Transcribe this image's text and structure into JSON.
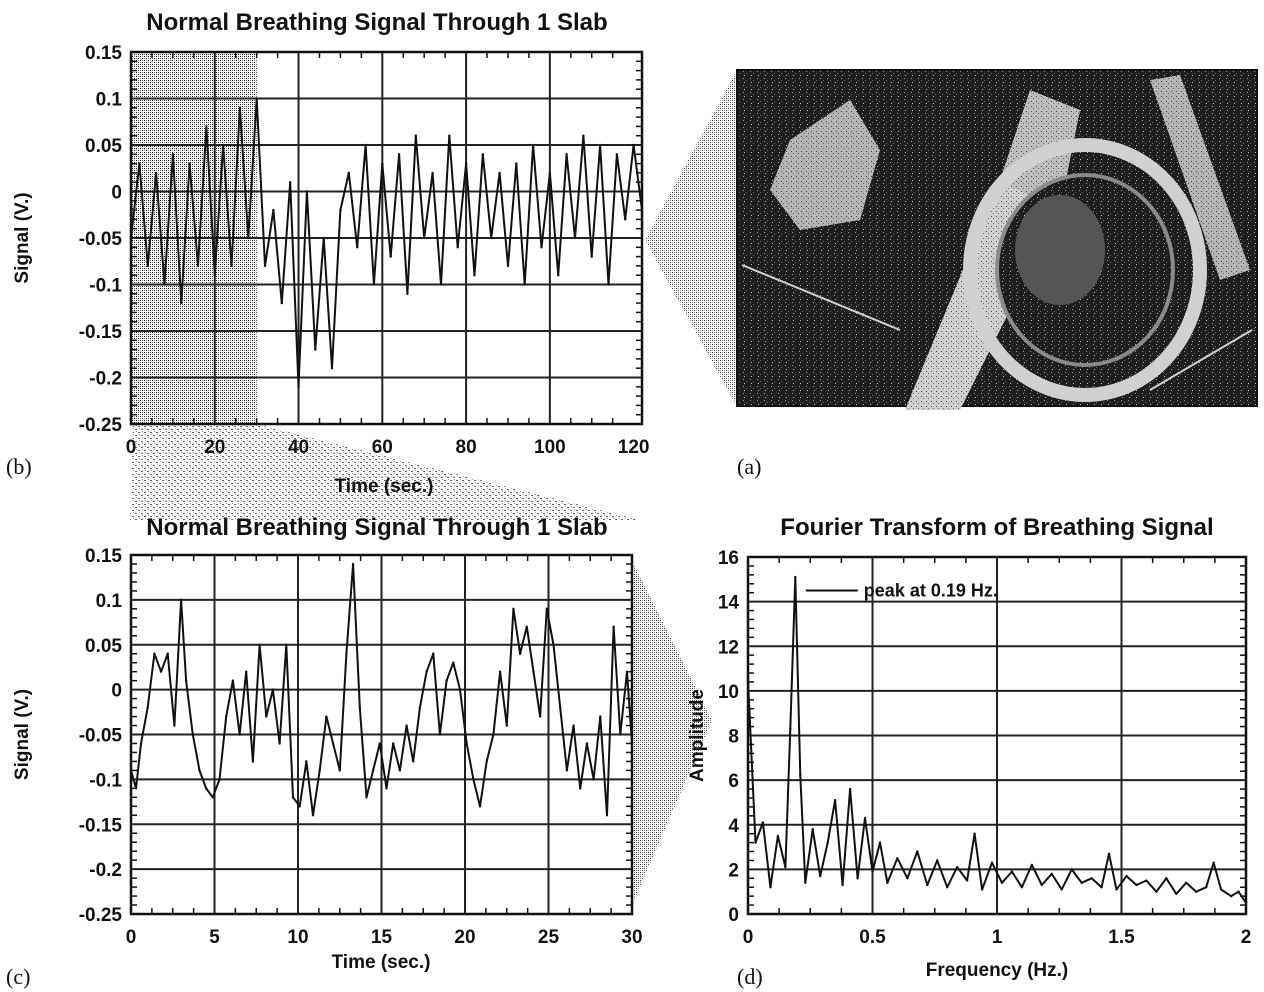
{
  "panels": {
    "b": "(b)",
    "a": "(a)",
    "c": "(c)",
    "d": "(d)"
  },
  "photo": {
    "subject": "slab-hole-photo"
  },
  "colors": {
    "line": "#111111",
    "grid": "#222222",
    "shade": "#9a9a9a",
    "photo_dark": "#1a1a1a",
    "photo_light": "#d8d8d8"
  },
  "chart_data": [
    {
      "id": "b",
      "type": "line",
      "title": "Normal Breathing Signal Through 1 Slab",
      "xlabel": "Time (sec.)",
      "ylabel": "Signal (V.)",
      "xlim": [
        0,
        122
      ],
      "ylim": [
        -0.25,
        0.15
      ],
      "xticks": [
        0,
        20,
        40,
        60,
        80,
        100,
        120
      ],
      "yticks": [
        0.15,
        0.1,
        0.05,
        0,
        -0.05,
        -0.1,
        -0.15,
        -0.2,
        -0.25
      ],
      "ytick_labels": [
        "0.15",
        "0.1",
        "0.05",
        "0",
        "-0.05",
        "-0.1",
        "-0.15",
        "-0.2",
        "-0.25"
      ],
      "xtick_labels": [
        "0",
        "20",
        "40",
        "60",
        "80",
        "100",
        "120"
      ],
      "highlight_range": [
        0,
        30
      ],
      "grid": true,
      "series": [
        {
          "x": [
            0,
            2,
            4,
            6,
            8,
            10,
            12,
            14,
            16,
            18,
            20,
            22,
            24,
            26,
            28,
            30,
            32,
            34,
            36,
            38,
            40,
            42,
            44,
            46,
            48,
            50,
            52,
            54,
            56,
            58,
            60,
            62,
            64,
            66,
            68,
            70,
            72,
            74,
            76,
            78,
            80,
            82,
            84,
            86,
            88,
            90,
            92,
            94,
            96,
            98,
            100,
            102,
            104,
            106,
            108,
            110,
            112,
            114,
            116,
            118,
            120,
            122
          ],
          "values": [
            -0.05,
            0.03,
            -0.08,
            0.02,
            -0.1,
            0.04,
            -0.12,
            0.03,
            -0.08,
            0.07,
            -0.09,
            0.05,
            -0.08,
            0.09,
            -0.05,
            0.1,
            -0.08,
            -0.02,
            -0.12,
            0.01,
            -0.21,
            0.0,
            -0.17,
            -0.05,
            -0.19,
            -0.02,
            0.02,
            -0.06,
            0.05,
            -0.1,
            0.03,
            -0.07,
            0.04,
            -0.11,
            0.06,
            -0.05,
            0.02,
            -0.1,
            0.06,
            -0.06,
            0.03,
            -0.09,
            0.04,
            -0.05,
            0.02,
            -0.08,
            0.03,
            -0.1,
            0.05,
            -0.06,
            0.02,
            -0.09,
            0.04,
            -0.05,
            0.06,
            -0.07,
            0.05,
            -0.1,
            0.04,
            -0.03,
            0.05,
            -0.02
          ]
        }
      ]
    },
    {
      "id": "c",
      "type": "line",
      "title": "Normal Breathing Signal Through 1 Slab",
      "xlabel": "Time (sec.)",
      "ylabel": "Signal (V.)",
      "xlim": [
        0,
        30
      ],
      "ylim": [
        -0.25,
        0.15
      ],
      "xticks": [
        0,
        5,
        10,
        15,
        20,
        25,
        30
      ],
      "yticks": [
        0.15,
        0.1,
        0.05,
        0,
        -0.05,
        -0.1,
        -0.15,
        -0.2,
        -0.25
      ],
      "ytick_labels": [
        "0.15",
        "0.1",
        "0.05",
        "0",
        "-0.05",
        "-0.1",
        "-0.15",
        "-0.2",
        "-0.25"
      ],
      "xtick_labels": [
        "0",
        "5",
        "10",
        "15",
        "20",
        "25",
        "30"
      ],
      "grid": true,
      "series": [
        {
          "x": [
            0,
            0.3,
            0.6,
            1.0,
            1.4,
            1.8,
            2.2,
            2.6,
            3.0,
            3.3,
            3.7,
            4.1,
            4.5,
            4.9,
            5.3,
            5.7,
            6.1,
            6.5,
            6.9,
            7.3,
            7.7,
            8.1,
            8.5,
            8.9,
            9.3,
            9.7,
            10.1,
            10.5,
            10.9,
            11.3,
            11.7,
            12.1,
            12.5,
            12.9,
            13.3,
            13.7,
            14.1,
            14.5,
            14.9,
            15.3,
            15.7,
            16.1,
            16.5,
            16.9,
            17.3,
            17.7,
            18.1,
            18.5,
            18.9,
            19.3,
            19.7,
            20.1,
            20.5,
            20.9,
            21.3,
            21.7,
            22.1,
            22.5,
            22.9,
            23.3,
            23.7,
            24.1,
            24.5,
            24.9,
            25.3,
            25.7,
            26.1,
            26.5,
            26.9,
            27.3,
            27.7,
            28.1,
            28.5,
            28.9,
            29.3,
            29.7,
            30
          ],
          "values": [
            -0.09,
            -0.11,
            -0.06,
            -0.02,
            0.04,
            0.02,
            0.04,
            -0.04,
            0.1,
            0.01,
            -0.05,
            -0.09,
            -0.11,
            -0.12,
            -0.1,
            -0.03,
            0.01,
            -0.05,
            0.02,
            -0.08,
            0.05,
            -0.03,
            0.0,
            -0.06,
            0.05,
            -0.12,
            -0.13,
            -0.08,
            -0.14,
            -0.09,
            -0.03,
            -0.06,
            -0.09,
            0.04,
            0.14,
            -0.02,
            -0.12,
            -0.09,
            -0.06,
            -0.11,
            -0.06,
            -0.09,
            -0.04,
            -0.08,
            -0.02,
            0.02,
            0.04,
            -0.05,
            0.01,
            0.03,
            0.0,
            -0.06,
            -0.1,
            -0.13,
            -0.08,
            -0.05,
            0.02,
            -0.04,
            0.09,
            0.04,
            0.07,
            0.02,
            -0.03,
            0.09,
            0.05,
            -0.02,
            -0.09,
            -0.04,
            -0.11,
            -0.06,
            -0.1,
            -0.03,
            -0.14,
            0.07,
            -0.05,
            0.02,
            -0.06
          ]
        }
      ]
    },
    {
      "id": "d",
      "type": "line",
      "title": "Fourier Transform of Breathing Signal",
      "xlabel": "Frequency (Hz.)",
      "ylabel": "Amplitude",
      "xlim": [
        0,
        2
      ],
      "ylim": [
        0,
        16
      ],
      "xticks": [
        0,
        0.5,
        1,
        1.5,
        2
      ],
      "yticks": [
        0,
        2,
        4,
        6,
        8,
        10,
        12,
        14,
        16
      ],
      "xtick_labels": [
        "0",
        "0.5",
        "1",
        "1.5",
        "2"
      ],
      "ytick_labels": [
        "0",
        "2",
        "4",
        "6",
        "8",
        "10",
        "12",
        "14",
        "16"
      ],
      "grid": true,
      "annotation": "peak at 0.19 Hz.",
      "series": [
        {
          "x": [
            0.0,
            0.03,
            0.06,
            0.09,
            0.12,
            0.15,
            0.17,
            0.19,
            0.21,
            0.23,
            0.26,
            0.29,
            0.32,
            0.35,
            0.38,
            0.41,
            0.44,
            0.47,
            0.5,
            0.53,
            0.56,
            0.6,
            0.64,
            0.68,
            0.72,
            0.76,
            0.8,
            0.84,
            0.88,
            0.91,
            0.94,
            0.98,
            1.02,
            1.06,
            1.1,
            1.14,
            1.18,
            1.22,
            1.26,
            1.3,
            1.34,
            1.38,
            1.42,
            1.45,
            1.48,
            1.52,
            1.56,
            1.6,
            1.64,
            1.68,
            1.72,
            1.76,
            1.8,
            1.84,
            1.87,
            1.9,
            1.94,
            1.97,
            2.0
          ],
          "values": [
            10.5,
            3.2,
            4.1,
            1.2,
            3.5,
            2.1,
            8.3,
            15.1,
            6.2,
            1.4,
            3.8,
            1.7,
            3.2,
            5.1,
            1.3,
            5.6,
            1.6,
            4.3,
            1.9,
            3.2,
            1.4,
            2.5,
            1.6,
            2.8,
            1.3,
            2.4,
            1.2,
            2.1,
            1.5,
            3.6,
            1.1,
            2.3,
            1.4,
            1.9,
            1.2,
            2.2,
            1.3,
            1.8,
            1.1,
            2.0,
            1.4,
            1.6,
            1.2,
            2.7,
            1.1,
            1.7,
            1.3,
            1.5,
            1.0,
            1.6,
            0.9,
            1.4,
            1.0,
            1.2,
            2.3,
            1.1,
            0.8,
            1.0,
            0.5
          ]
        }
      ]
    }
  ]
}
